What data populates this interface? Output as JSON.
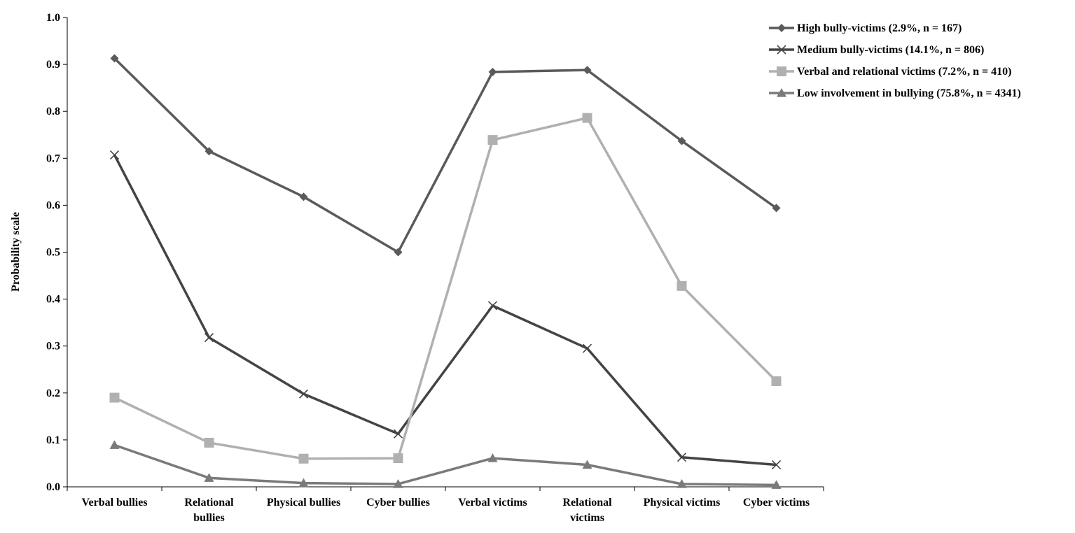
{
  "chart_data": {
    "type": "line",
    "title": "",
    "xlabel": "",
    "ylabel": "Probability  scale",
    "ylim": [
      0,
      1.0
    ],
    "yticks": [
      "0.0",
      "0.1",
      "0.2",
      "0.3",
      "0.4",
      "0.5",
      "0.6",
      "0.7",
      "0.8",
      "0.9",
      "1.0"
    ],
    "grid": false,
    "legend_position": "top-right",
    "categories": [
      [
        "Verbal bullies"
      ],
      [
        "Relational",
        "bullies"
      ],
      [
        "Physical bullies"
      ],
      [
        "Cyber bullies"
      ],
      [
        "Verbal victims"
      ],
      [
        "Relational",
        "victims"
      ],
      [
        "Physical victims"
      ],
      [
        "Cyber victims"
      ]
    ],
    "series": [
      {
        "name": "High bully-victims (2.9%, n = 167)",
        "marker": "diamond",
        "color": "#5a5a5a",
        "values": [
          0.913,
          0.715,
          0.618,
          0.5,
          0.884,
          0.888,
          0.737,
          0.594
        ]
      },
      {
        "name": "Medium bully-victims (14.1%, n = 806)",
        "marker": "x",
        "color": "#444444",
        "values": [
          0.707,
          0.318,
          0.198,
          0.113,
          0.386,
          0.295,
          0.063,
          0.047
        ]
      },
      {
        "name": "Verbal and relational victims (7.2%, n = 410)",
        "marker": "square",
        "color": "#b0b0b0",
        "values": [
          0.19,
          0.094,
          0.06,
          0.061,
          0.739,
          0.786,
          0.428,
          0.225
        ]
      },
      {
        "name": "Low involvement in bullying (75.8%, n = 4341)",
        "marker": "triangle",
        "color": "#7a7a7a",
        "values": [
          0.089,
          0.019,
          0.008,
          0.006,
          0.061,
          0.047,
          0.006,
          0.004
        ]
      }
    ]
  }
}
